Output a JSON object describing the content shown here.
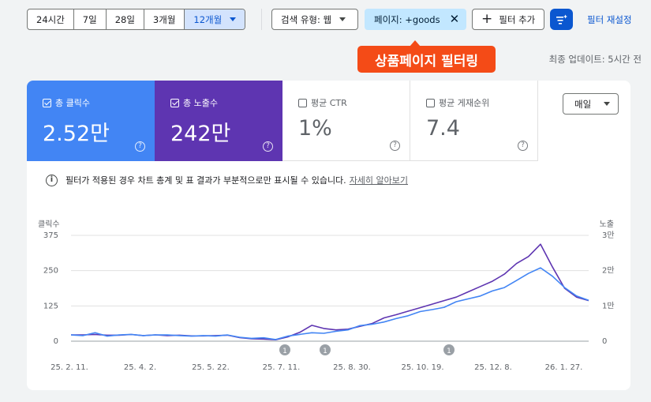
{
  "date_range": {
    "options": [
      "24시간",
      "7일",
      "28일",
      "3개월",
      "12개월"
    ],
    "selected": "12개월"
  },
  "filters": {
    "search_type": "검색 유형: 웹",
    "page_filter": "페이지: +goods",
    "add_filter": "필터 추가",
    "reset": "필터 재설정"
  },
  "annotation": "상품페이지 필터링",
  "last_updated": "최종 업데이트: 5시간 전",
  "metrics": [
    {
      "label": "총 클릭수",
      "value": "2.52만",
      "checked": true,
      "color": "#4285f4"
    },
    {
      "label": "총 노출수",
      "value": "242만",
      "checked": true,
      "color": "#5e35b1"
    },
    {
      "label": "평균 CTR",
      "value": "1%",
      "checked": false
    },
    {
      "label": "평균 게재순위",
      "value": "7.4",
      "checked": false
    }
  ],
  "granularity": "매일",
  "info": {
    "text": "필터가 적용된 경우 차트 총계 및 표 결과가 부분적으로만 표시될 수 있습니다.",
    "link": "자세히 알아보기"
  },
  "chart_data": {
    "type": "line",
    "left_axis": {
      "label": "클릭수",
      "ticks": [
        "375",
        "250",
        "125",
        "0"
      ],
      "range": [
        0,
        375
      ]
    },
    "right_axis": {
      "label": "노출",
      "ticks": [
        "3만",
        "2만",
        "1만",
        "0"
      ],
      "range": [
        0,
        30000
      ]
    },
    "x_ticks": [
      "25. 2. 11.",
      "25. 4. 2.",
      "25. 5. 22.",
      "25. 7. 11.",
      "25. 8. 30.",
      "25. 10. 19.",
      "25. 12. 8.",
      "26. 1. 27."
    ],
    "annotations": [
      "1",
      "1",
      "1"
    ],
    "series": [
      {
        "name": "클릭수",
        "color": "#4285f4",
        "axis": "left",
        "values": [
          22,
          20,
          30,
          18,
          22,
          24,
          20,
          22,
          22,
          20,
          18,
          20,
          18,
          22,
          14,
          10,
          12,
          6,
          18,
          24,
          30,
          28,
          35,
          40,
          55,
          60,
          68,
          80,
          90,
          105,
          112,
          120,
          140,
          150,
          160,
          178,
          190,
          215,
          240,
          260,
          230,
          190,
          160,
          145
        ]
      },
      {
        "name": "노출",
        "color": "#5e35b1",
        "axis": "right",
        "values": [
          1800,
          1800,
          1900,
          1700,
          1700,
          1900,
          1600,
          1800,
          1600,
          1700,
          1500,
          1500,
          1600,
          1700,
          1000,
          700,
          600,
          400,
          1200,
          2500,
          4500,
          3600,
          3200,
          3400,
          4200,
          5000,
          6600,
          7500,
          8500,
          9500,
          10500,
          11500,
          12500,
          14000,
          15500,
          17000,
          19000,
          22000,
          24000,
          27500,
          21000,
          15000,
          12500,
          11500
        ]
      }
    ]
  }
}
